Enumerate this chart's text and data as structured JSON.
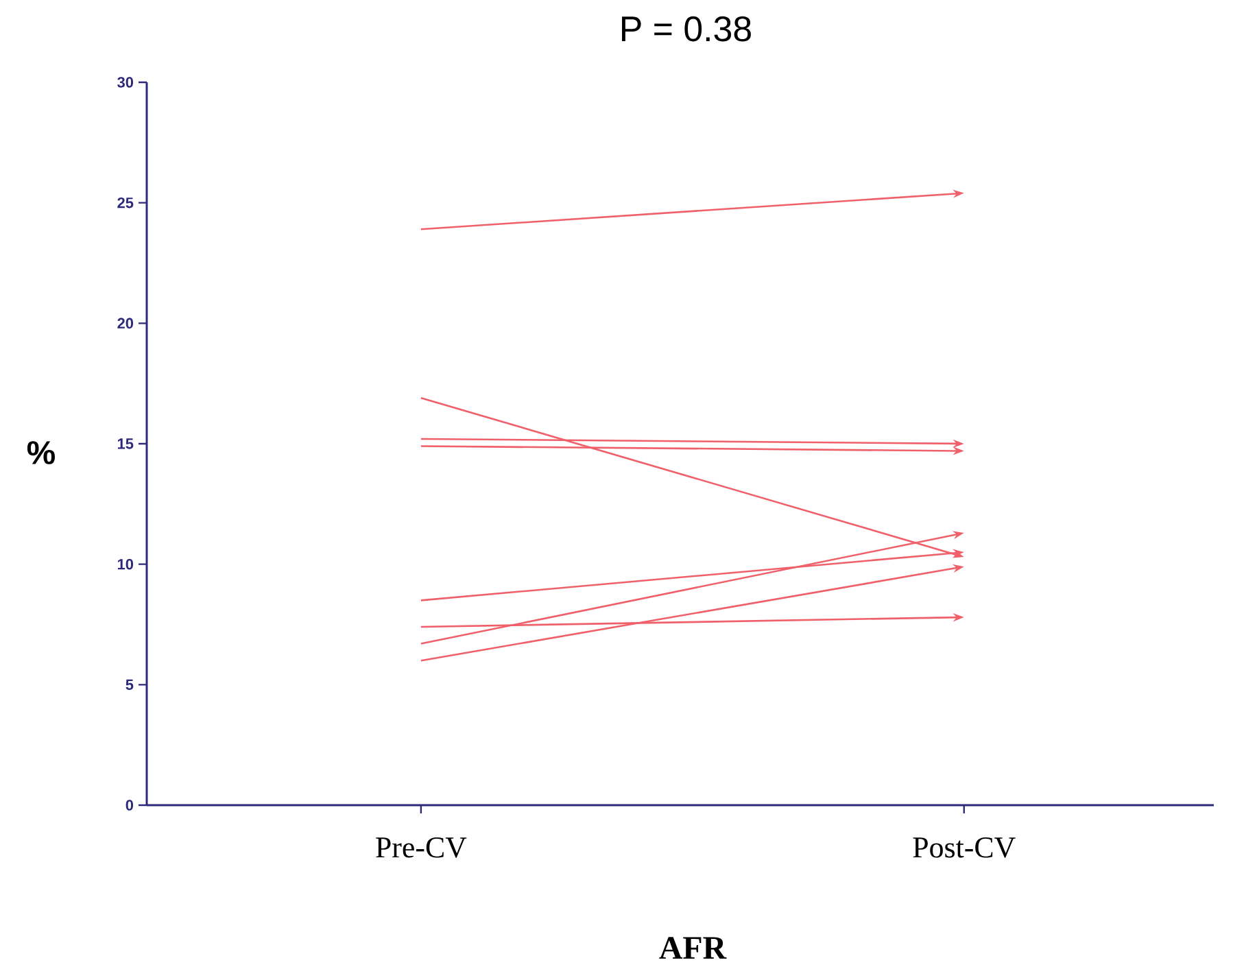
{
  "chart_data": {
    "type": "line",
    "title": "P = 0.38",
    "xlabel": "AFR",
    "ylabel": "%",
    "categories": [
      "Pre-CV",
      "Post-CV"
    ],
    "ylim": [
      0,
      30
    ],
    "yticks": [
      0,
      5,
      10,
      15,
      20,
      25,
      30
    ],
    "grid": false,
    "line_style": "solid",
    "series": [
      {
        "color": "#f0606a",
        "values": [
          23.9,
          25.4
        ]
      },
      {
        "color": "#f0606a",
        "values": [
          16.9,
          10.3
        ]
      },
      {
        "color": "#f0606a",
        "values": [
          15.2,
          15.0
        ]
      },
      {
        "color": "#f0606a",
        "values": [
          14.9,
          14.7
        ]
      },
      {
        "color": "#f0606a",
        "values": [
          8.5,
          10.5
        ]
      },
      {
        "color": "#f0606a",
        "values": [
          7.4,
          7.8
        ]
      },
      {
        "color": "#f0606a",
        "values": [
          6.7,
          11.3
        ]
      },
      {
        "color": "#f0606a",
        "values": [
          6.0,
          9.9
        ]
      }
    ]
  }
}
